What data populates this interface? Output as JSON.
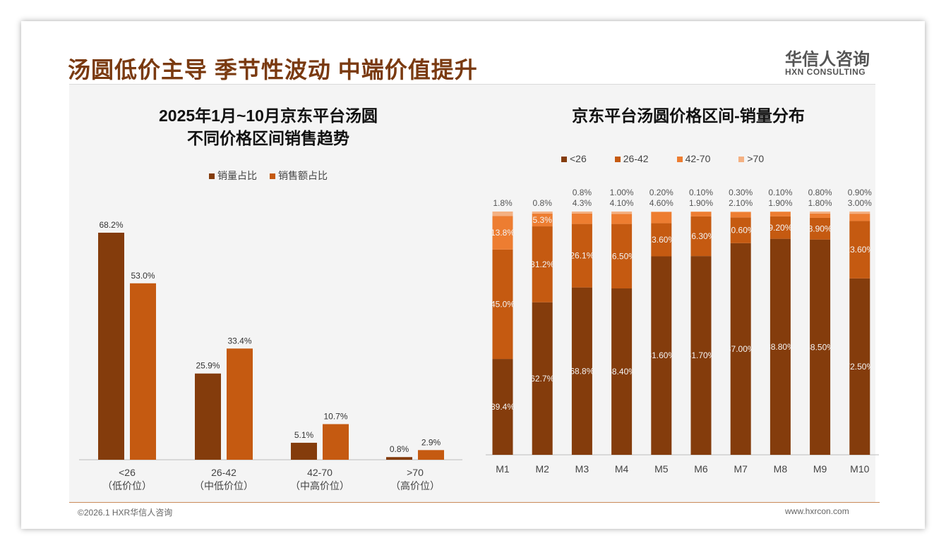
{
  "header": {
    "title": "汤圆低价主导 季节性波动 中端价值提升",
    "logo_cn": "华信人咨询",
    "logo_en": "HXN CONSULTING"
  },
  "footer": {
    "copyright": "©2026.1 HXR华信人咨询",
    "url": "www.hxrcon.com"
  },
  "colors": {
    "dark": "#843c0c",
    "mid": "#c55a11",
    "light": "#ed7d31",
    "pale": "#f4b183"
  },
  "chart_data": [
    {
      "type": "bar",
      "title_line1": "2025年1月~10月京东平台汤圆",
      "title_line2": "不同价格区间销售趋势",
      "categories": [
        "<26",
        "26-42",
        "42-70",
        ">70"
      ],
      "sublabels": [
        "（低价位）",
        "（中低价位）",
        "（中高价位）",
        "（高价位）"
      ],
      "series": [
        {
          "name": "销量占比",
          "values": [
            68.2,
            25.9,
            5.1,
            0.8
          ],
          "labels": [
            "68.2%",
            "25.9%",
            "5.1%",
            "0.8%"
          ]
        },
        {
          "name": "销售额占比",
          "values": [
            53.0,
            33.4,
            10.7,
            2.9
          ],
          "labels": [
            "53.0%",
            "33.4%",
            "10.7%",
            "2.9%"
          ]
        }
      ],
      "ylim": [
        0,
        70
      ],
      "legend": "top"
    },
    {
      "type": "bar",
      "stacked": true,
      "title": "京东平台汤圆价格区间-销量分布",
      "categories": [
        "M1",
        "M2",
        "M3",
        "M4",
        "M5",
        "M6",
        "M7",
        "M8",
        "M9",
        "M10"
      ],
      "series": [
        {
          "name": "<26",
          "values": [
            39.4,
            62.7,
            68.8,
            68.4,
            81.6,
            81.7,
            87.0,
            88.8,
            88.5,
            72.5
          ],
          "labels": [
            "39.4%",
            "62.7%",
            "68.8%",
            "68.40%",
            "81.60%",
            "81.70%",
            "87.00%",
            "88.80%",
            "88.50%",
            "72.50%"
          ]
        },
        {
          "name": "26-42",
          "values": [
            45.0,
            31.2,
            26.1,
            26.5,
            13.6,
            16.3,
            10.6,
            9.2,
            8.9,
            23.6
          ],
          "labels": [
            "45.0%",
            "31.2%",
            "26.1%",
            "26.50%",
            "13.60%",
            "16.30%",
            "10.60%",
            "9.20%",
            "8.90%",
            "23.60%"
          ]
        },
        {
          "name": "42-70",
          "values": [
            13.8,
            5.3,
            4.3,
            4.1,
            4.6,
            1.9,
            2.1,
            1.9,
            1.8,
            3.0
          ],
          "labels": [
            "13.8%",
            "5.3%",
            "4.3%",
            "4.10%",
            "4.60%",
            "1.90%",
            "2.10%",
            "1.90%",
            "1.80%",
            "3.00%"
          ]
        },
        {
          "name": ">70",
          "values": [
            1.8,
            0.8,
            0.8,
            1.0,
            0.2,
            0.1,
            0.3,
            0.1,
            0.8,
            0.9
          ],
          "labels": [
            "1.8%",
            "0.8%",
            "0.8%",
            "1.00%",
            "0.20%",
            "0.10%",
            "0.30%",
            "0.10%",
            "0.80%",
            "0.90%"
          ]
        }
      ],
      "ylim": [
        0,
        100
      ],
      "legend": "top"
    }
  ]
}
